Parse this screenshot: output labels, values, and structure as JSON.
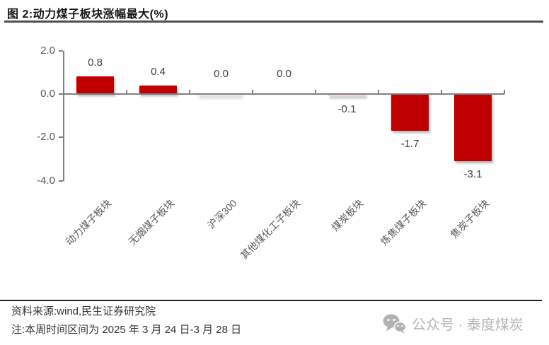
{
  "title": "图 2:动力煤子板块涨幅最大(%)",
  "chart_data": {
    "type": "bar",
    "title": "动力煤子板块涨幅最大(%)",
    "categories": [
      "动力煤子板块",
      "无烟煤子板块",
      "沪深300",
      "其他煤化工子板块",
      "煤炭板块",
      "炼焦煤子板块",
      "焦炭子板块"
    ],
    "values": [
      0.8,
      0.4,
      0.0,
      0.0,
      -0.1,
      -1.7,
      -3.1
    ],
    "bar_colors": [
      "#C00000",
      "#C00000",
      "#C00000",
      "#C00000",
      "#EFD8D7",
      "#C00000",
      "#C00000"
    ],
    "zero_shadow_flags": [
      false,
      false,
      true,
      false,
      false,
      false,
      false
    ],
    "ylim": [
      -4.0,
      2.0
    ],
    "yticks": [
      2.0,
      0.0,
      -2.0,
      -4.0
    ],
    "ytick_labels": [
      "2.0",
      "0.0",
      "-2.0",
      "-4.0"
    ],
    "xlabel": "",
    "ylabel": "",
    "grid": false,
    "legend": false,
    "colors": {
      "bar_red": "#C00000",
      "bar_pink": "#EFD8D7",
      "axis": "#808080",
      "tick_label": "#595959",
      "value_label": "#404040"
    }
  },
  "footer": {
    "source": "资料来源:wind,民生证券研究院",
    "note": "注:本周时间区间为 2025 年 3 月 24 日-3 月 28 日",
    "watermark_text": "公众号 · 泰度煤炭"
  }
}
